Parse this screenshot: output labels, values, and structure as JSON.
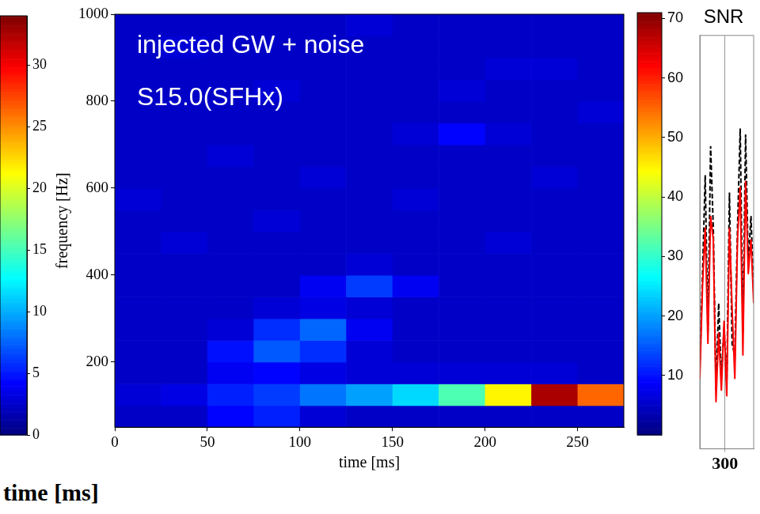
{
  "chart_data": [
    {
      "type": "colorbar",
      "zlim": [
        0,
        34
      ],
      "zticks": [
        0,
        5,
        10,
        15,
        20,
        25,
        30
      ],
      "xlabel": "time [ms]"
    },
    {
      "type": "heatmap",
      "annotations": [
        "injected GW + noise",
        "S15.0(SFHx)"
      ],
      "xlabel": "time [ms]",
      "ylabel": "frequency [Hz]",
      "x": [
        0,
        25,
        50,
        75,
        100,
        125,
        150,
        175,
        200,
        225,
        250,
        275
      ],
      "y": [
        50,
        100,
        150,
        200,
        250,
        300,
        350,
        400,
        450,
        500,
        550,
        600,
        650,
        700,
        750,
        800,
        850,
        900,
        950,
        1000
      ],
      "cells": [
        [
          5,
          5,
          9,
          11,
          6,
          5,
          5,
          5,
          5,
          5,
          5
        ],
        [
          6,
          7,
          11,
          13,
          17,
          20,
          24,
          32,
          45,
          68,
          55
        ],
        [
          5,
          5,
          8,
          9,
          7,
          6,
          6,
          6,
          6,
          6,
          5
        ],
        [
          5,
          5,
          10,
          15,
          12,
          6,
          5,
          5,
          5,
          5,
          5
        ],
        [
          5,
          5,
          6,
          12,
          16,
          8,
          5,
          5,
          5,
          5,
          5
        ],
        [
          5,
          5,
          5,
          6,
          7,
          6,
          5,
          5,
          5,
          5,
          5
        ],
        [
          5,
          5,
          5,
          5,
          8,
          13,
          8,
          5,
          5,
          5,
          5
        ],
        [
          5,
          5,
          5,
          5,
          5,
          6,
          5,
          5,
          5,
          5,
          5
        ],
        [
          5,
          6,
          5,
          5,
          5,
          5,
          5,
          5,
          6,
          5,
          5
        ],
        [
          5,
          5,
          5,
          6,
          5,
          5,
          5,
          5,
          5,
          5,
          5
        ],
        [
          6,
          5,
          5,
          5,
          5,
          5,
          6,
          5,
          5,
          5,
          5
        ],
        [
          5,
          5,
          5,
          5,
          6,
          5,
          5,
          5,
          5,
          6,
          5
        ],
        [
          5,
          5,
          6,
          5,
          5,
          5,
          5,
          5,
          5,
          5,
          5
        ],
        [
          5,
          5,
          5,
          5,
          5,
          5,
          6,
          9,
          6,
          5,
          5
        ],
        [
          5,
          5,
          5,
          5,
          5,
          5,
          5,
          5,
          5,
          5,
          6
        ],
        [
          5,
          5,
          5,
          6,
          5,
          5,
          5,
          6,
          5,
          5,
          5
        ],
        [
          5,
          5,
          5,
          5,
          5,
          5,
          5,
          5,
          6,
          6,
          5
        ],
        [
          5,
          6,
          5,
          5,
          5,
          5,
          5,
          5,
          5,
          5,
          5
        ],
        [
          5,
          5,
          5,
          5,
          5,
          6,
          5,
          5,
          5,
          5,
          5
        ]
      ],
      "xlim": [
        0,
        275
      ],
      "xticks": [
        0,
        50,
        100,
        150,
        200,
        250
      ],
      "ylim": [
        50,
        1000
      ],
      "yticks": [
        200,
        400,
        600,
        800,
        1000
      ],
      "zlim": [
        0,
        71
      ],
      "zticks": [
        10,
        20,
        30,
        40,
        50,
        60,
        70
      ],
      "grid": false
    },
    {
      "type": "line",
      "title": "SNR",
      "x": [
        286,
        287.5,
        289,
        290.5,
        292,
        293.5,
        295,
        296.5,
        298,
        299.5,
        301,
        302.5,
        304,
        305.5,
        307,
        308.5,
        310,
        311.5,
        313,
        314.5,
        316
      ],
      "series": [
        {
          "color": "#ff0000",
          "line_style": "solid",
          "values": [
            12,
            28,
            38,
            18,
            40,
            36,
            8,
            20,
            10,
            22,
            9,
            38,
            24,
            12,
            36,
            45,
            16,
            46,
            30,
            36,
            25
          ]
        },
        {
          "color": "#000000",
          "line_style": "dashed",
          "values": [
            14,
            30,
            47,
            20,
            52,
            38,
            10,
            25,
            12,
            21,
            11,
            44,
            18,
            16,
            38,
            55,
            20,
            54,
            32,
            40,
            27
          ]
        }
      ],
      "xlim": [
        286,
        316
      ],
      "xticks": [
        300
      ],
      "ylim": [
        0,
        71
      ],
      "tick_labels": "x"
    }
  ]
}
